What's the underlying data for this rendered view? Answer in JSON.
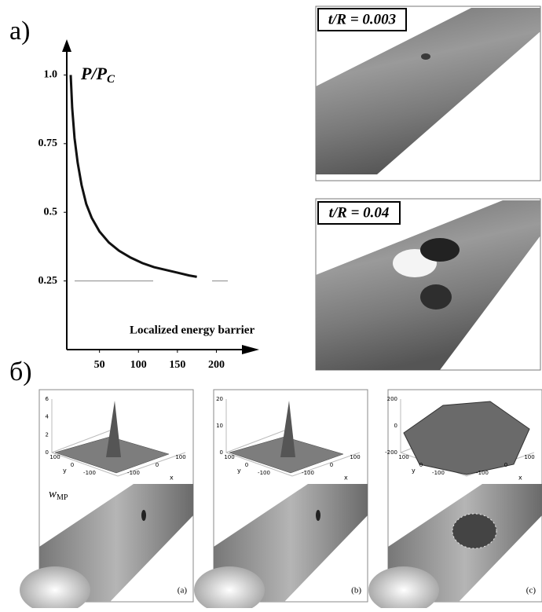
{
  "panel_labels": [
    "а)",
    "б)"
  ],
  "chart_data": {
    "type": "line",
    "y_label": {
      "text": "P/P",
      "subscript": "C"
    },
    "x_label": "Localized energy barrier",
    "x": [
      13,
      15,
      18,
      22,
      27,
      33,
      40,
      50,
      62,
      75,
      90,
      105,
      120,
      135,
      150,
      165,
      175
    ],
    "series": [
      {
        "color": "#111111",
        "values": [
          1.0,
          0.88,
          0.77,
          0.68,
          0.6,
          0.53,
          0.48,
          0.43,
          0.39,
          0.36,
          0.335,
          0.315,
          0.3,
          0.29,
          0.28,
          0.27,
          0.265
        ]
      }
    ],
    "asymptote": 0.25,
    "xlim": [
      8,
      255
    ],
    "ylim": [
      0,
      1.13
    ],
    "xticks": [
      50,
      100,
      150,
      200
    ],
    "yticks": [
      {
        "value": 1.0,
        "label": "1.0"
      },
      0.75,
      0.5,
      0.25
    ]
  },
  "shell_images": [
    {
      "label": "t/R = 0.003"
    },
    {
      "label": "t/R = 0.04"
    }
  ],
  "subpanels": [
    {
      "label": "(a)",
      "zticks": [
        "6",
        "4",
        "2",
        "0"
      ],
      "xticks": [
        "100",
        "0",
        "-100"
      ],
      "yticks": [
        "100",
        "0",
        "-100"
      ]
    },
    {
      "label": "(b)",
      "zticks": [
        "20",
        "10",
        "0"
      ],
      "xticks": [
        "100",
        "0",
        "-100"
      ],
      "yticks": [
        "100",
        "0",
        "-100"
      ]
    },
    {
      "label": "(c)",
      "zticks": [
        "200",
        "0",
        "-200"
      ],
      "xticks": [
        "100",
        "0",
        "-100"
      ],
      "yticks": [
        "100",
        "0",
        "-100"
      ]
    }
  ],
  "axis_letters": {
    "x": "x",
    "y": "y"
  },
  "w_label": {
    "text": "w",
    "subscript": "MP"
  }
}
